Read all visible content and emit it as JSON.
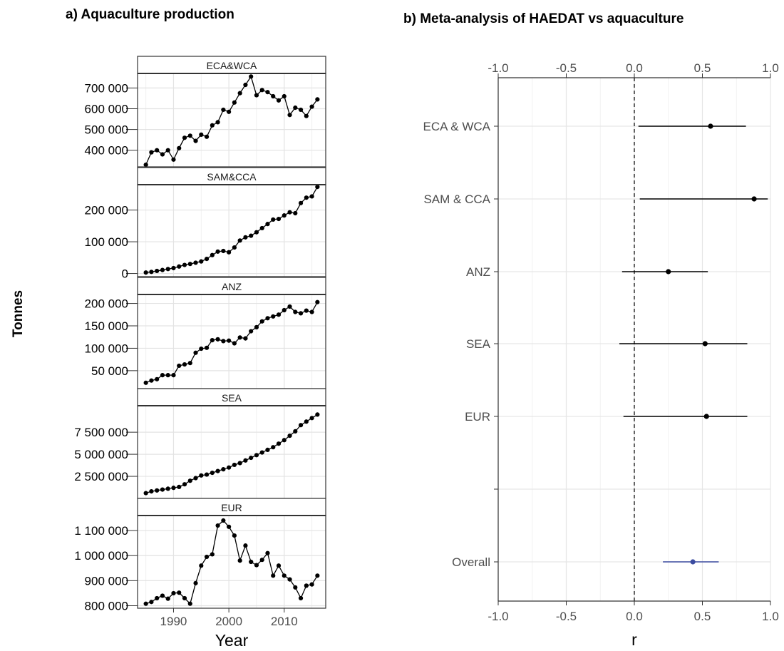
{
  "panel_a": {
    "title": "a) Aquaculture production"
  },
  "panel_b": {
    "title": "b) Meta-analysis of HAEDAT vs aquaculture"
  },
  "chart_data": [
    {
      "type": "line",
      "title": "a) Aquaculture production",
      "xlabel": "Year",
      "ylabel": "Tonnes",
      "x_ticks": [
        1990,
        2000,
        2010
      ],
      "xlim": [
        1983.5,
        2017.5
      ],
      "grid": true,
      "facets": [
        {
          "name": "ECA&WCA",
          "ylim": [
            320000,
            770000
          ],
          "y_ticks": [
            400000,
            500000,
            600000,
            700000
          ],
          "y_tick_labels": [
            "400 000",
            "500 000",
            "600 000",
            "700 000"
          ],
          "x": [
            1985,
            1986,
            1987,
            1988,
            1989,
            1990,
            1991,
            1992,
            1993,
            1994,
            1995,
            1996,
            1997,
            1998,
            1999,
            2000,
            2001,
            2002,
            2003,
            2004,
            2005,
            2006,
            2007,
            2008,
            2009,
            2010,
            2011,
            2012,
            2013,
            2014,
            2015,
            2016
          ],
          "values": [
            330000,
            390000,
            400000,
            380000,
            400000,
            355000,
            410000,
            460000,
            470000,
            445000,
            475000,
            465000,
            520000,
            535000,
            595000,
            585000,
            630000,
            675000,
            715000,
            755000,
            665000,
            690000,
            680000,
            660000,
            640000,
            660000,
            570000,
            605000,
            595000,
            565000,
            610000,
            645000
          ]
        },
        {
          "name": "SAM&CCA",
          "ylim": [
            -10000,
            280000
          ],
          "y_ticks": [
            0,
            100000,
            200000
          ],
          "y_tick_labels": [
            "0",
            "100 000",
            "200 000"
          ],
          "x": [
            1985,
            1986,
            1987,
            1988,
            1989,
            1990,
            1991,
            1992,
            1993,
            1994,
            1995,
            1996,
            1997,
            1998,
            1999,
            2000,
            2001,
            2002,
            2003,
            2004,
            2005,
            2006,
            2007,
            2008,
            2009,
            2010,
            2011,
            2012,
            2013,
            2014,
            2015,
            2016
          ],
          "values": [
            3000,
            5000,
            8000,
            11000,
            14000,
            17000,
            22000,
            27000,
            30000,
            34000,
            38000,
            46000,
            58000,
            69000,
            71000,
            67000,
            82000,
            104000,
            114000,
            119000,
            130000,
            143000,
            156000,
            170000,
            172000,
            183000,
            193000,
            190000,
            222000,
            239000,
            243000,
            273000
          ]
        },
        {
          "name": "ANZ",
          "ylim": [
            10000,
            220000
          ],
          "y_ticks": [
            50000,
            100000,
            150000,
            200000
          ],
          "y_tick_labels": [
            "50 000",
            "100 000",
            "150 000",
            "200 000"
          ],
          "x": [
            1985,
            1986,
            1987,
            1988,
            1989,
            1990,
            1991,
            1992,
            1993,
            1994,
            1995,
            1996,
            1997,
            1998,
            1999,
            2000,
            2001,
            2002,
            2003,
            2004,
            2005,
            2006,
            2007,
            2008,
            2009,
            2010,
            2011,
            2012,
            2013,
            2014,
            2015,
            2016
          ],
          "values": [
            23000,
            28000,
            31000,
            40000,
            40000,
            40000,
            61000,
            64000,
            67000,
            90000,
            99000,
            101000,
            118000,
            120000,
            116000,
            117000,
            111000,
            124000,
            122000,
            138000,
            147000,
            160000,
            167000,
            171000,
            175000,
            185000,
            193000,
            181000,
            178000,
            184000,
            181000,
            203000
          ]
        },
        {
          "name": "SEA",
          "ylim": [
            0,
            10500000
          ],
          "y_ticks": [
            2500000,
            5000000,
            7500000
          ],
          "y_tick_labels": [
            "2 500 000",
            "5 000 000",
            "7 500 000"
          ],
          "x": [
            1985,
            1986,
            1987,
            1988,
            1989,
            1990,
            1991,
            1992,
            1993,
            1994,
            1995,
            1996,
            1997,
            1998,
            1999,
            2000,
            2001,
            2002,
            2003,
            2004,
            2005,
            2006,
            2007,
            2008,
            2009,
            2010,
            2011,
            2012,
            2013,
            2014,
            2015,
            2016
          ],
          "values": [
            600000,
            800000,
            900000,
            1000000,
            1100000,
            1200000,
            1300000,
            1600000,
            2000000,
            2300000,
            2600000,
            2700000,
            2900000,
            3100000,
            3300000,
            3500000,
            3800000,
            4000000,
            4300000,
            4600000,
            4900000,
            5200000,
            5500000,
            5800000,
            6200000,
            6600000,
            7100000,
            7600000,
            8300000,
            8700000,
            9100000,
            9500000
          ]
        },
        {
          "name": "EUR",
          "ylim": [
            790000,
            1160000
          ],
          "y_ticks": [
            800000,
            900000,
            1000000,
            1100000
          ],
          "y_tick_labels": [
            "800 000",
            "900 000",
            "1 000 000",
            "1 100 000"
          ],
          "x": [
            1985,
            1986,
            1987,
            1988,
            1989,
            1990,
            1991,
            1992,
            1993,
            1994,
            1995,
            1996,
            1997,
            1998,
            1999,
            2000,
            2001,
            2002,
            2003,
            2004,
            2005,
            2006,
            2007,
            2008,
            2009,
            2010,
            2011,
            2012,
            2013,
            2014,
            2015,
            2016
          ],
          "values": [
            808000,
            815000,
            830000,
            840000,
            828000,
            850000,
            852000,
            830000,
            808000,
            890000,
            960000,
            995000,
            1005000,
            1120000,
            1140000,
            1115000,
            1080000,
            980000,
            1040000,
            975000,
            962000,
            983000,
            1010000,
            920000,
            960000,
            920000,
            905000,
            873000,
            830000,
            880000,
            885000,
            920000
          ]
        }
      ]
    },
    {
      "type": "scatter",
      "subtype": "forest",
      "title": "b) Meta-analysis of HAEDAT vs aquaculture",
      "xlabel": "r",
      "xlim": [
        -1.0,
        1.0
      ],
      "x_ticks": [
        -1.0,
        -0.5,
        0.0,
        0.5,
        1.0
      ],
      "x_tick_labels": [
        "-1.0",
        "-0.5",
        "0.0",
        "0.5",
        "1.0"
      ],
      "reference_line": 0.0,
      "grid": true,
      "rows": [
        {
          "label": "ECA & WCA",
          "estimate": 0.56,
          "lower": 0.03,
          "upper": 0.82,
          "color": "#000000"
        },
        {
          "label": "SAM & CCA",
          "estimate": 0.88,
          "lower": 0.04,
          "upper": 0.98,
          "color": "#000000"
        },
        {
          "label": "ANZ",
          "estimate": 0.25,
          "lower": -0.09,
          "upper": 0.54,
          "color": "#000000"
        },
        {
          "label": "SEA",
          "estimate": 0.52,
          "lower": -0.11,
          "upper": 0.83,
          "color": "#000000"
        },
        {
          "label": "EUR",
          "estimate": 0.53,
          "lower": -0.08,
          "upper": 0.83,
          "color": "#000000"
        },
        {
          "label": "",
          "estimate": null,
          "lower": null,
          "upper": null,
          "color": "#000000"
        },
        {
          "label": "Overall",
          "estimate": 0.43,
          "lower": 0.21,
          "upper": 0.62,
          "color": "#3b4ba0"
        }
      ]
    }
  ]
}
